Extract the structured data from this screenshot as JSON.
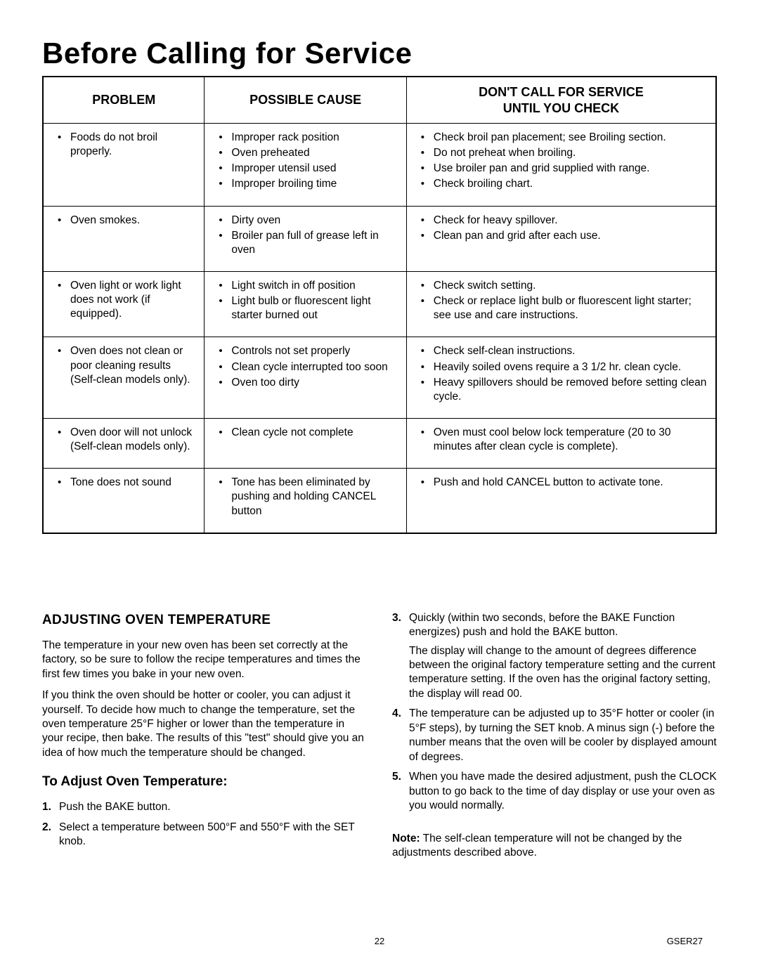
{
  "title": "Before Calling for Service",
  "tableHeaders": {
    "problem": "PROBLEM",
    "cause": "POSSIBLE CAUSE",
    "checkLine1": "DON'T CALL FOR SERVICE",
    "checkLine2": "UNTIL YOU CHECK"
  },
  "rows": [
    {
      "problem": [
        "Foods do not broil properly."
      ],
      "cause": [
        "Improper rack position",
        "Oven preheated",
        "Improper utensil used",
        "Improper broiling time"
      ],
      "check": [
        "Check broil pan placement;  see Broiling section.",
        "Do not preheat when broiling.",
        "Use broiler pan and grid supplied with range.",
        "Check broiling chart."
      ]
    },
    {
      "problem": [
        "Oven smokes."
      ],
      "cause": [
        "Dirty oven",
        "Broiler pan full of grease left in oven"
      ],
      "check": [
        "Check for heavy spillover.",
        "Clean pan and grid after each use."
      ]
    },
    {
      "problem": [
        "Oven light or work light does not work (if equipped)."
      ],
      "cause": [
        "Light switch in off position",
        "Light bulb or fluorescent light starter burned out"
      ],
      "check": [
        "Check switch setting.",
        "Check or replace light bulb or fluorescent light starter;  see use and care instructions."
      ]
    },
    {
      "problem": [
        "Oven does not clean or poor cleaning results (Self-clean models only)."
      ],
      "cause": [
        "Controls not set properly",
        "Clean cycle interrupted too soon",
        "Oven too dirty"
      ],
      "check": [
        "Check self-clean instructions.",
        "Heavily soiled ovens require a 3 1/2 hr. clean cycle.",
        "Heavy spillovers should be removed before setting clean cycle."
      ]
    },
    {
      "problem": [
        "Oven door will not unlock (Self-clean models only)."
      ],
      "cause": [
        "Clean cycle not complete"
      ],
      "check": [
        "Oven must cool below lock temperature (20 to 30 minutes after clean cycle is complete)."
      ]
    },
    {
      "problem": [
        "Tone does not sound"
      ],
      "cause": [
        "Tone has been eliminated by pushing and holding CANCEL button"
      ],
      "check": [
        "Push and hold CANCEL button to activate tone."
      ]
    }
  ],
  "adjust": {
    "heading": "ADJUSTING OVEN TEMPERATURE",
    "para1": "The temperature in your new oven has been set correctly at the factory, so be sure to follow the recipe temperatures and times the first few times you bake in your new oven.",
    "para2": "If you think the oven should be hotter or cooler, you can adjust it yourself.  To decide how much to change the temperature, set the oven temperature 25°F higher or lower than the temperature in your recipe, then bake.  The results of this \"test\" should give you an idea of how much the temperature should be changed.",
    "subheading": "To Adjust Oven Temperature:",
    "leftSteps": [
      {
        "n": "1.",
        "t": "Push the BAKE button."
      },
      {
        "n": "2.",
        "t": "Select a temperature between 500°F and 550°F with the SET knob."
      }
    ],
    "rightSteps": [
      {
        "n": "3.",
        "t": "Quickly (within two seconds, before the BAKE Function energizes) push and hold the BAKE button.",
        "sub": "The display will change to the amount of degrees difference between the original factory temperature setting and the current temperature setting.  If the oven has the original factory setting, the display will read 00."
      },
      {
        "n": "4.",
        "t": "The temperature can be adjusted up to 35°F hotter or cooler (in 5°F steps), by turning the SET knob.  A minus sign (-) before the number means that the oven will be cooler by displayed amount of degrees."
      },
      {
        "n": "5.",
        "t": "When you have made the desired adjustment, push the CLOCK button to go back to the time of day display or use your oven as you would normally."
      }
    ],
    "noteLabel": "Note:",
    "noteText": "  The self-clean temperature will not be changed by the adjustments described above."
  },
  "footer": {
    "page": "22",
    "model": "GSER27"
  }
}
